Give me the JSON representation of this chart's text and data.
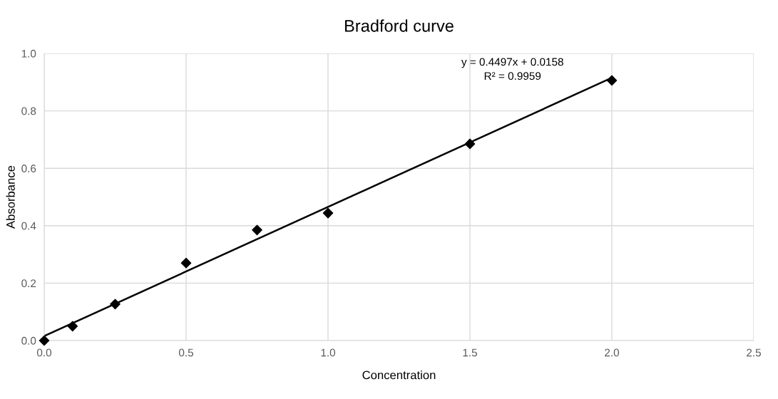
{
  "chart_data": {
    "type": "scatter",
    "title": "Bradford curve",
    "xlabel": "Concentration",
    "ylabel": "Absorbance",
    "series": [
      {
        "color": "#000000",
        "marker": "diamond",
        "x": [
          0,
          0.1,
          0.25,
          0.5,
          0.75,
          1.0,
          1.5,
          2.0
        ],
        "values": [
          0.0,
          0.05,
          0.127,
          0.27,
          0.385,
          0.444,
          0.685,
          0.906
        ]
      },
      {
        "type": "line",
        "color": "#000000",
        "marker": "none",
        "line_style": "solid",
        "x": [
          0,
          2.0
        ],
        "values": [
          0.016,
          0.915
        ]
      }
    ],
    "annotations": [
      "y = 0.4497x + 0.0158\nR² = 0.9959"
    ],
    "xlim": [
      0,
      2.5
    ],
    "xticks": [
      {
        "value": 0,
        "label": "0.0"
      },
      0.5,
      {
        "value": 1,
        "label": "1.0"
      },
      1.5,
      {
        "value": 2,
        "label": "2.0"
      },
      2.5
    ],
    "ylim": [
      0,
      1
    ],
    "yticks": [
      {
        "value": 0,
        "label": "0.0"
      },
      0.2,
      0.4,
      0.6,
      0.8,
      {
        "value": 1,
        "label": "1.0"
      }
    ],
    "grid": true
  }
}
